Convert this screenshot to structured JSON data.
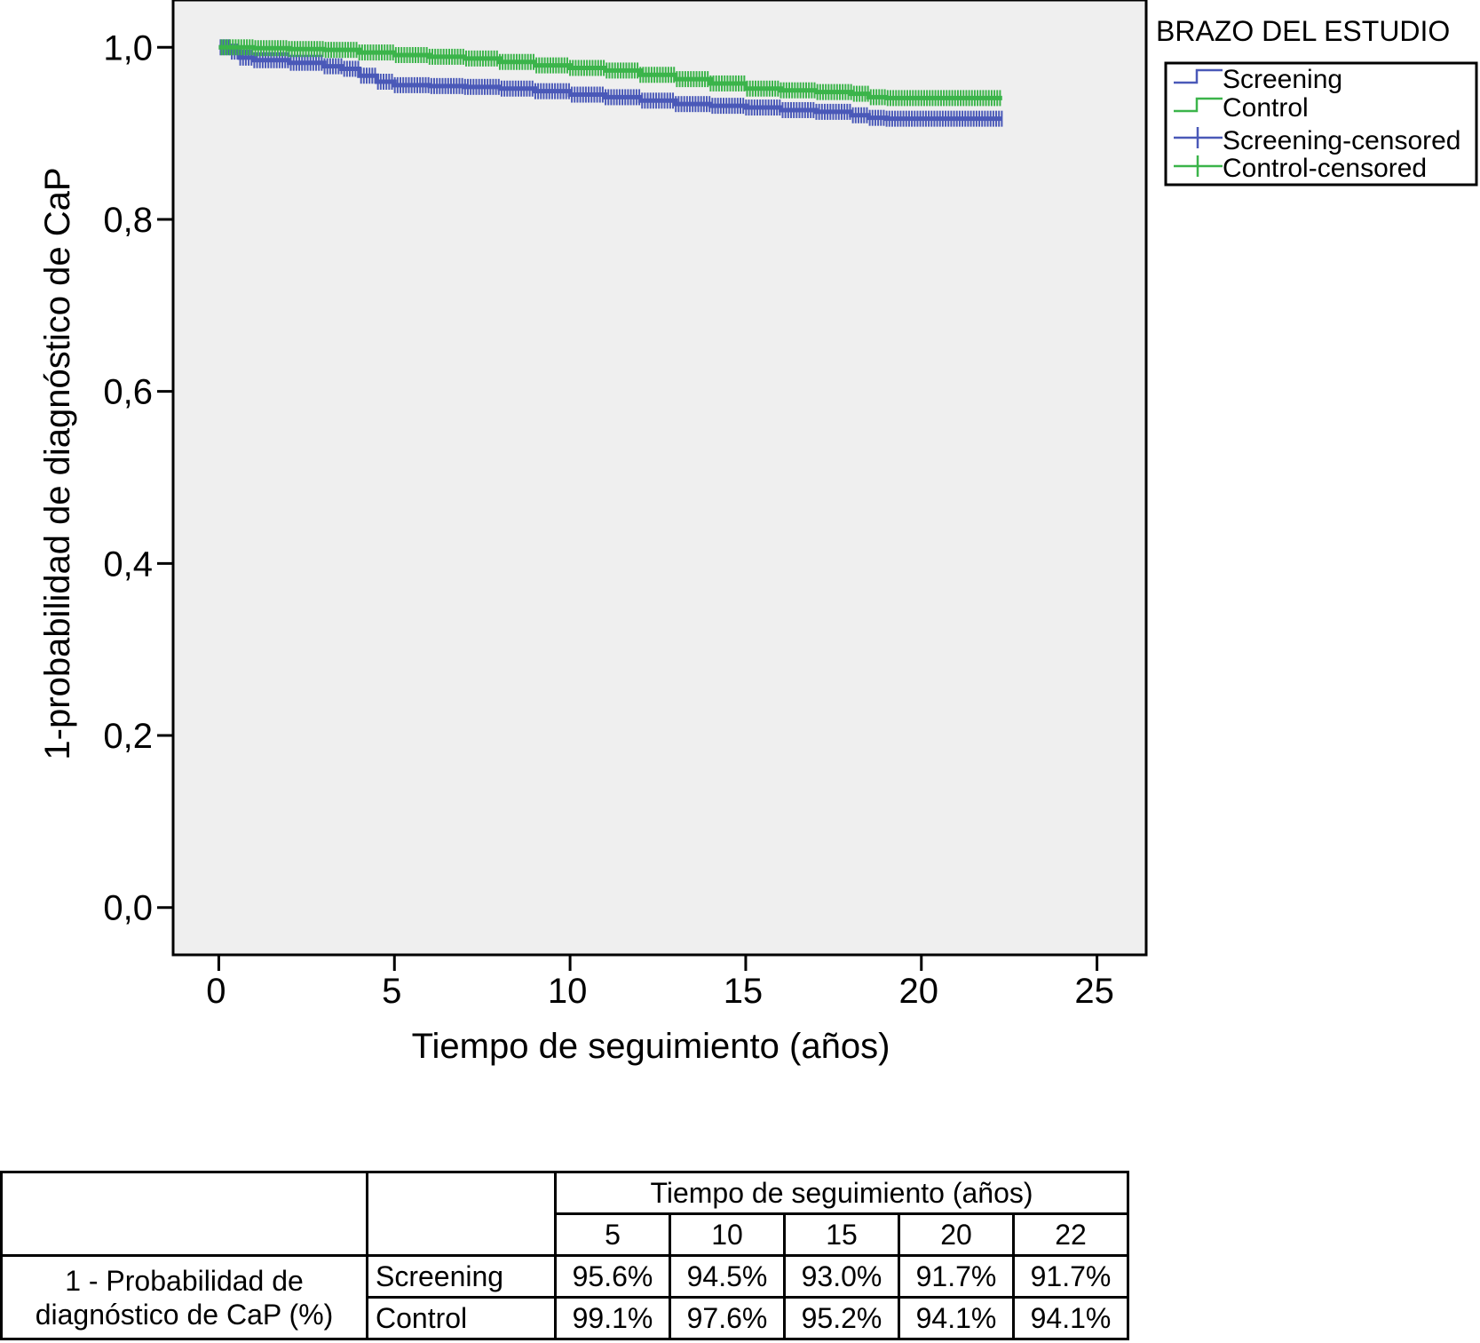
{
  "chart_data": {
    "type": "line",
    "subtype": "kaplan-meier step",
    "xlabel": "Tiempo de seguimiento (años)",
    "ylabel": "1-probabilidad de diagnóstico de CaP",
    "xlim": [
      -1.3,
      26.4
    ],
    "ylim": [
      -0.055,
      1.055
    ],
    "x_ticks": [
      0,
      5,
      10,
      15,
      20,
      25
    ],
    "x_tick_labels": [
      "0",
      "5",
      "10",
      "15",
      "20",
      "25"
    ],
    "y_ticks": [
      0.0,
      0.2,
      0.4,
      0.6,
      0.8,
      1.0
    ],
    "y_tick_labels": [
      "0,0",
      "0,2",
      "0,4",
      "0,6",
      "0,8",
      "1,0"
    ],
    "background": "#efefef",
    "grid": false,
    "legend_position": "right",
    "legend_title": "BRAZO DEL ESTUDIO",
    "legend_entries": [
      "Screening",
      "Control",
      "Screening-censored",
      "Control-censored"
    ],
    "series": [
      {
        "name": "Screening",
        "color": "#4a59b8",
        "x": [
          0,
          0.3,
          0.6,
          1,
          2,
          3,
          3.5,
          4,
          4.5,
          5,
          6,
          7,
          8,
          9,
          10,
          11,
          12,
          13,
          14,
          15,
          16,
          17,
          18,
          18.5,
          19,
          20,
          21,
          22,
          22.3
        ],
        "y": [
          1.0,
          0.995,
          0.988,
          0.985,
          0.982,
          0.978,
          0.975,
          0.967,
          0.96,
          0.956,
          0.955,
          0.954,
          0.952,
          0.949,
          0.945,
          0.942,
          0.938,
          0.934,
          0.932,
          0.93,
          0.927,
          0.925,
          0.921,
          0.918,
          0.917,
          0.917,
          0.917,
          0.917,
          0.917
        ]
      },
      {
        "name": "Control",
        "color": "#3bb44a",
        "x": [
          0,
          1,
          2,
          3,
          4,
          5,
          6,
          7,
          8,
          9,
          10,
          11,
          12,
          13,
          14,
          15,
          16,
          17,
          18,
          18.5,
          19,
          20,
          21,
          22,
          22.3
        ],
        "y": [
          1.0,
          0.999,
          0.998,
          0.997,
          0.994,
          0.991,
          0.989,
          0.987,
          0.983,
          0.979,
          0.976,
          0.973,
          0.968,
          0.963,
          0.958,
          0.952,
          0.95,
          0.948,
          0.946,
          0.942,
          0.941,
          0.941,
          0.941,
          0.941,
          0.941
        ]
      }
    ]
  },
  "table": {
    "header_span": "Tiempo de seguimiento (años)",
    "years": [
      "5",
      "10",
      "15",
      "20",
      "22"
    ],
    "row_label_line1": "1 - Probabilidad de",
    "row_label_line2": "diagnóstico de CaP (%)",
    "rows": [
      {
        "group": "Screening",
        "values": [
          "95.6%",
          "94.5%",
          "93.0%",
          "91.7%",
          "91.7%"
        ]
      },
      {
        "group": "Control",
        "values": [
          "99.1%",
          "97.6%",
          "95.2%",
          "94.1%",
          "94.1%"
        ]
      }
    ]
  }
}
